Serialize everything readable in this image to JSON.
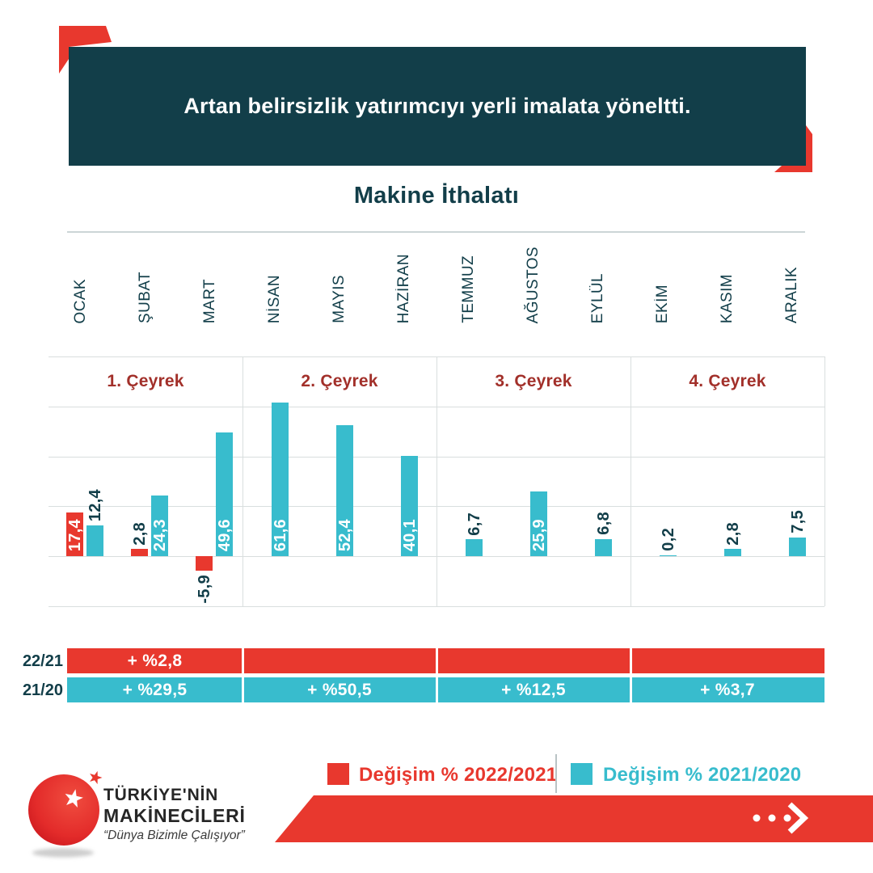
{
  "header": {
    "title": "Artan belirsizlik yatırımcıyı yerli imalata yöneltti."
  },
  "chart_data": {
    "type": "bar",
    "title": "Makine İthalatı",
    "categories": [
      "OCAK",
      "ŞUBAT",
      "MART",
      "NİSAN",
      "MAYIS",
      "HAZİRAN",
      "TEMMUZ",
      "AĞUSTOS",
      "EYLÜL",
      "EKİM",
      "KASIM",
      "ARALIK"
    ],
    "quarters": [
      "1. Çeyrek",
      "2. Çeyrek",
      "3. Çeyrek",
      "4. Çeyrek"
    ],
    "series": [
      {
        "name": "Değişim % 2022/2021",
        "color": "#e8382e",
        "values": [
          17.4,
          2.8,
          -5.9,
          null,
          null,
          null,
          null,
          null,
          null,
          null,
          null,
          null
        ]
      },
      {
        "name": "Değişim % 2021/2020",
        "color": "#38bccd",
        "values": [
          12.4,
          24.3,
          49.6,
          61.6,
          52.4,
          40.1,
          6.7,
          25.9,
          6.8,
          0.2,
          2.8,
          7.5
        ]
      }
    ],
    "ylim": [
      -20,
      80
    ],
    "gridline_step": 20,
    "grid": true,
    "legend_position": "bottom",
    "quarter_summary": {
      "rows": [
        {
          "label": "22/21",
          "color": "#e8382e",
          "segments": [
            "+ %2,8",
            "",
            "",
            ""
          ]
        },
        {
          "label": "21/20",
          "color": "#38bccd",
          "segments": [
            "+ %29,5",
            "+ %50,5",
            "+ %12,5",
            "+ %3,7"
          ]
        }
      ]
    }
  },
  "legend": {
    "items": [
      {
        "label": "Değişim % 2022/2021",
        "color": "#e8382e"
      },
      {
        "label": "Değişim % 2021/2020",
        "color": "#38bccd"
      }
    ]
  },
  "footer": {
    "logo": {
      "line1": "TÜRKİYE'NİN",
      "line2": "MAKİNECİLERİ",
      "tagline": "“Dünya Bizimle Çalışıyor”"
    },
    "ribbon_icons": [
      "dots-icon",
      "chevron-right-icon"
    ]
  },
  "colors": {
    "header_bg": "#123e49",
    "red": "#e8382e",
    "teal": "#38bccd",
    "dark": "#123e49",
    "quarter_red": "#a2302a",
    "grid": "#d9dede"
  }
}
